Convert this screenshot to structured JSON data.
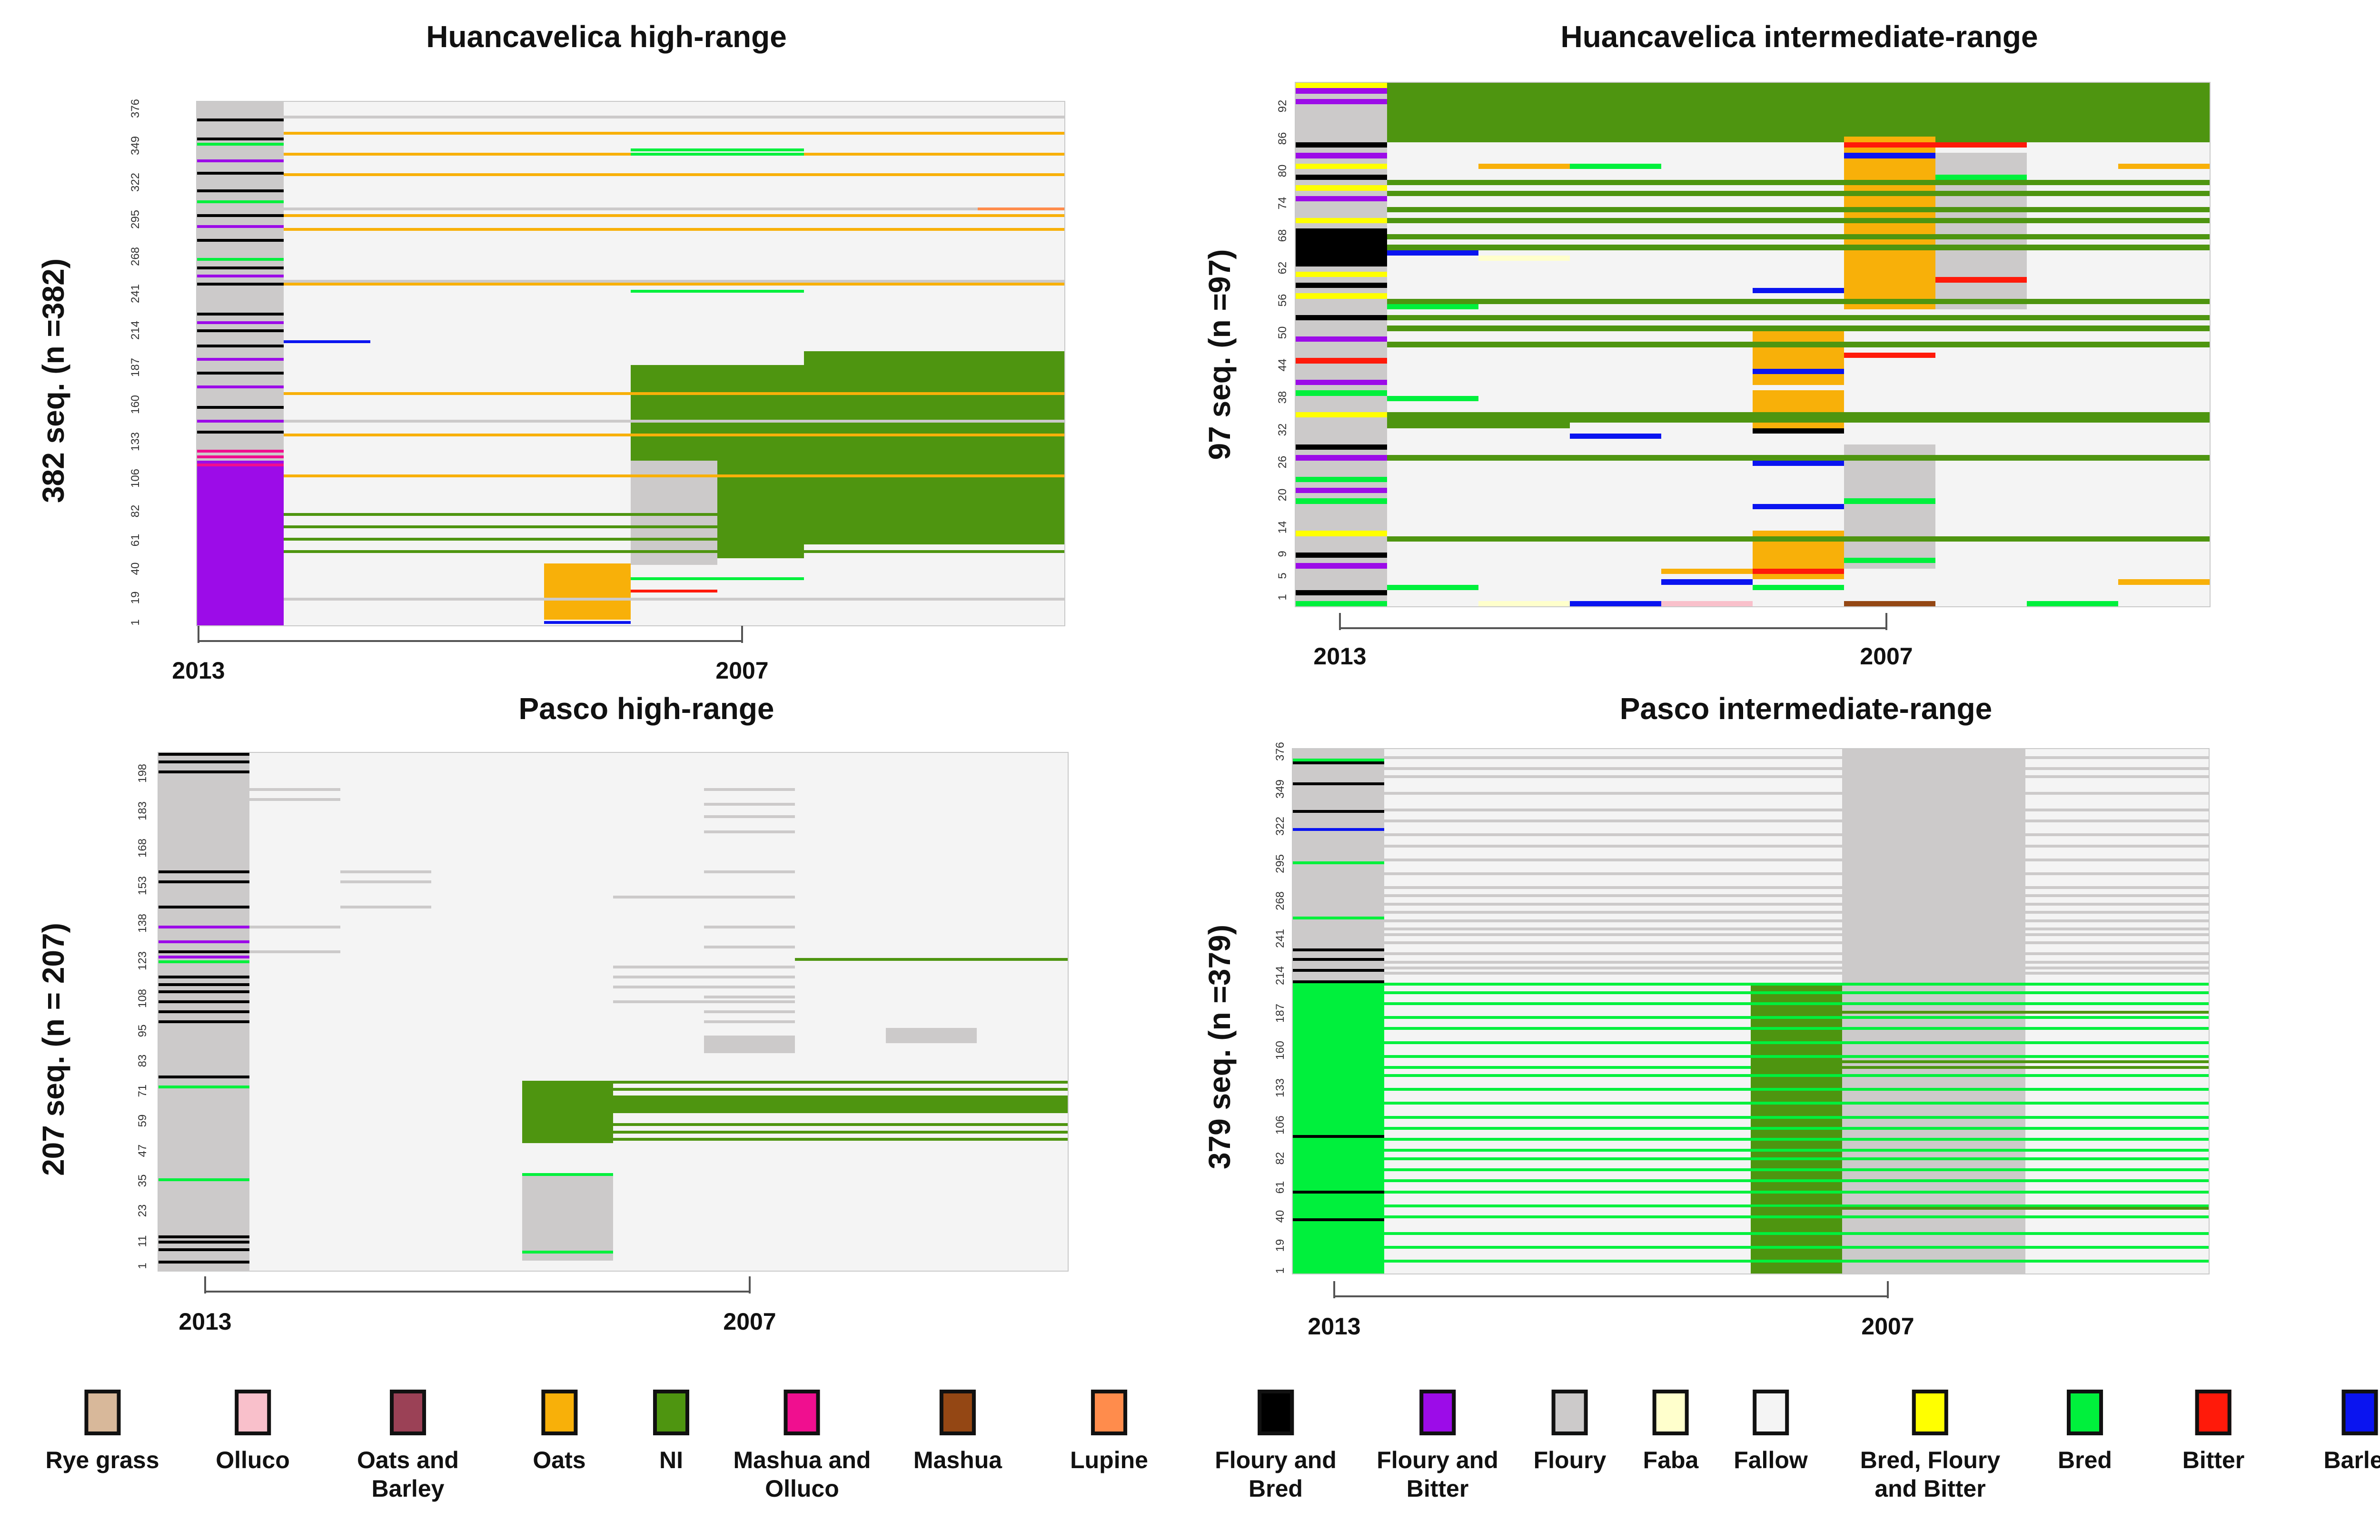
{
  "chart_data": [
    {
      "type": "heatmap",
      "title": "Huancavelica high-range",
      "ylabel": "382 seq. (n =382)",
      "n": 382,
      "y_ticks": [
        "1",
        "19",
        "40",
        "61",
        "82",
        "106",
        "133",
        "160",
        "187",
        "214",
        "241",
        "268",
        "295",
        "322",
        "349",
        "376"
      ],
      "x_labels": [
        "2013",
        "2007"
      ],
      "columns": 10,
      "blocks": [
        {
          "state": "Floury",
          "col0": 0,
          "col1": 1,
          "row0": 1,
          "row1": 382
        },
        {
          "state": "Floury and Bitter",
          "col0": 0,
          "col1": 1,
          "row0": 1,
          "row1": 120
        },
        {
          "state": "NI",
          "col0": 7,
          "col1": 10,
          "row0": 60,
          "row1": 200
        },
        {
          "state": "NI",
          "col0": 5,
          "col1": 7,
          "row0": 50,
          "row1": 190
        },
        {
          "state": "Oats",
          "col0": 4,
          "col1": 5,
          "row0": 5,
          "row1": 45
        },
        {
          "state": "Floury",
          "col0": 5,
          "col1": 6,
          "row0": 45,
          "row1": 120
        }
      ],
      "lines": [
        {
          "state": "Floury and Bred",
          "col0": 0,
          "col1": 1,
          "rows": [
            142,
            160,
            185,
            205,
            216,
            228,
            250,
            262,
            282,
            300,
            318,
            331,
            356,
            370
          ]
        },
        {
          "state": "Mashua and Olluco",
          "col0": 0,
          "col1": 1,
          "rows": [
            118,
            124,
            128
          ]
        },
        {
          "state": "Floury and Bitter",
          "col0": 0,
          "col1": 1,
          "rows": [
            150,
            175,
            195,
            222,
            256,
            292,
            340
          ]
        },
        {
          "state": "Bred",
          "col0": 0,
          "col1": 1,
          "rows": [
            268,
            310,
            352
          ]
        },
        {
          "state": "NI",
          "col0": 1,
          "col1": 10,
          "rows": [
            55,
            64,
            73,
            82
          ]
        },
        {
          "state": "Oats",
          "col0": 1,
          "col1": 10,
          "rows": [
            110,
            140,
            170,
            250,
            290,
            300,
            330,
            345,
            360,
            372
          ]
        },
        {
          "state": "Floury",
          "col0": 1,
          "col1": 10,
          "rows": [
            20,
            150,
            252,
            305,
            372
          ]
        },
        {
          "state": "Barley",
          "col0": 1,
          "col1": 2,
          "rows": [
            208
          ]
        },
        {
          "state": "Barley",
          "col0": 4,
          "col1": 5,
          "rows": [
            3
          ]
        },
        {
          "state": "Bitter",
          "col0": 5,
          "col1": 6,
          "rows": [
            26
          ]
        },
        {
          "state": "Bred",
          "col0": 5,
          "col1": 7,
          "rows": [
            35,
            245,
            345,
            348
          ]
        },
        {
          "state": "Lupine",
          "col0": 9,
          "col1": 10,
          "rows": [
            305
          ]
        }
      ]
    },
    {
      "type": "heatmap",
      "title": "Huancavelica intermediate-range",
      "ylabel": "97 seq. (n =97)",
      "n": 97,
      "y_ticks": [
        "1",
        "5",
        "9",
        "14",
        "20",
        "26",
        "32",
        "38",
        "44",
        "50",
        "56",
        "62",
        "68",
        "74",
        "80",
        "86",
        "92"
      ],
      "x_labels": [
        "2013",
        "2007"
      ],
      "columns": 10,
      "blocks": [
        {
          "state": "NI",
          "col0": 1,
          "col1": 10,
          "rows_from": 87,
          "row0": 87,
          "row1": 97
        },
        {
          "state": "Floury",
          "col0": 0,
          "col1": 1,
          "row0": 1,
          "row1": 97
        },
        {
          "state": "Floury and Bred",
          "col0": 0,
          "col1": 1,
          "row0": 64,
          "row1": 70
        },
        {
          "state": "Oats",
          "col0": 5,
          "col1": 6,
          "row0": 6,
          "row1": 14
        },
        {
          "state": "Oats",
          "col0": 5,
          "col1": 6,
          "row0": 34,
          "row1": 40
        },
        {
          "state": "Oats",
          "col0": 5,
          "col1": 6,
          "row0": 42,
          "row1": 52
        },
        {
          "state": "Oats",
          "col0": 6,
          "col1": 7,
          "row0": 56,
          "row1": 87
        },
        {
          "state": "Floury",
          "col0": 6,
          "col1": 7,
          "row0": 8,
          "row1": 30
        },
        {
          "state": "Floury",
          "col0": 7,
          "col1": 8,
          "row0": 56,
          "row1": 84
        }
      ],
      "lines": [
        {
          "state": "Floury and Bitter",
          "col0": 0,
          "col1": 1,
          "rows": [
            8,
            22,
            28,
            42,
            50,
            76,
            84,
            94,
            96
          ]
        },
        {
          "state": "Bred, Floury and Bitter",
          "col0": 0,
          "col1": 1,
          "rows": [
            14,
            36,
            58,
            62,
            72,
            78,
            82,
            97
          ]
        },
        {
          "state": "Floury and Bred",
          "col0": 0,
          "col1": 1,
          "rows": [
            3,
            10,
            30,
            54,
            60,
            80,
            86
          ]
        },
        {
          "state": "Bitter",
          "col0": 0,
          "col1": 1,
          "rows": [
            46
          ]
        },
        {
          "state": "Bred",
          "col0": 0,
          "col1": 1,
          "rows": [
            1,
            20,
            24,
            40
          ]
        },
        {
          "state": "NI",
          "col0": 1,
          "col1": 10,
          "rows": [
            13,
            28,
            35,
            36,
            49,
            52,
            54,
            57,
            67,
            69,
            72,
            74,
            77,
            79
          ]
        },
        {
          "state": "NI",
          "col0": 1,
          "col1": 3,
          "rows": [
            34
          ]
        },
        {
          "state": "Bred",
          "col0": 1,
          "col1": 2,
          "rows": [
            4,
            56
          ]
        },
        {
          "state": "Bred",
          "col0": 1,
          "col1": 2,
          "rows": [
            39
          ]
        },
        {
          "state": "Barley",
          "col0": 1,
          "col1": 2,
          "rows": [
            66
          ]
        },
        {
          "state": "Barley",
          "col0": 3,
          "col1": 4,
          "rows": [
            1,
            32
          ]
        },
        {
          "state": "Oats",
          "col0": 2,
          "col1": 3,
          "rows": [
            82
          ]
        },
        {
          "state": "Bred",
          "col0": 3,
          "col1": 4,
          "rows": [
            82
          ]
        },
        {
          "state": "Faba",
          "col0": 2,
          "col1": 3,
          "rows": [
            1,
            65
          ]
        },
        {
          "state": "Olluco",
          "col0": 4,
          "col1": 5,
          "rows": [
            1
          ]
        },
        {
          "state": "Barley",
          "col0": 4,
          "col1": 5,
          "rows": [
            5
          ]
        },
        {
          "state": "Oats",
          "col0": 4,
          "col1": 5,
          "rows": [
            7
          ]
        },
        {
          "state": "Barley",
          "col0": 5,
          "col1": 6,
          "rows": [
            19,
            27,
            44,
            59
          ]
        },
        {
          "state": "Bitter",
          "col0": 5,
          "col1": 6,
          "rows": [
            7
          ]
        },
        {
          "state": "Bred",
          "col0": 5,
          "col1": 6,
          "rows": [
            4
          ]
        },
        {
          "state": "Floury and Bred",
          "col0": 5,
          "col1": 6,
          "rows": [
            33
          ]
        },
        {
          "state": "Mashua",
          "col0": 6,
          "col1": 7,
          "rows": [
            1
          ]
        },
        {
          "state": "Bred",
          "col0": 6,
          "col1": 7,
          "rows": [
            9,
            20
          ]
        },
        {
          "state": "Bitter",
          "col0": 6,
          "col1": 7,
          "rows": [
            47,
            86
          ]
        },
        {
          "state": "Barley",
          "col0": 6,
          "col1": 7,
          "rows": [
            84
          ]
        },
        {
          "state": "Bitter",
          "col0": 7,
          "col1": 8,
          "rows": [
            61,
            86
          ]
        },
        {
          "state": "Bred",
          "col0": 7,
          "col1": 8,
          "rows": [
            80
          ]
        },
        {
          "state": "Bred",
          "col0": 8,
          "col1": 9,
          "rows": [
            1
          ]
        },
        {
          "state": "Oats",
          "col0": 9,
          "col1": 10,
          "rows": [
            5,
            82
          ]
        }
      ]
    },
    {
      "type": "heatmap",
      "title": "Pasco high-range",
      "ylabel": "207 seq. (n = 207)",
      "n": 207,
      "y_ticks": [
        "1",
        "11",
        "23",
        "35",
        "47",
        "59",
        "71",
        "83",
        "95",
        "108",
        "123",
        "138",
        "153",
        "168",
        "183",
        "198"
      ],
      "x_labels": [
        "2013",
        "2007"
      ],
      "columns": 10,
      "blocks": [
        {
          "state": "Floury",
          "col0": 0,
          "col1": 1,
          "row0": 1,
          "row1": 207
        },
        {
          "state": "NI",
          "col0": 4,
          "col1": 10,
          "row0": 64,
          "row1": 70
        },
        {
          "state": "NI",
          "col0": 4,
          "col1": 5,
          "row0": 52,
          "row1": 75
        },
        {
          "state": "Floury",
          "col0": 4,
          "col1": 5,
          "row0": 5,
          "row1": 38
        },
        {
          "state": "Floury",
          "col0": 8,
          "col1": 9,
          "row0": 92,
          "row1": 97
        },
        {
          "state": "Floury",
          "col0": 6,
          "col1": 7,
          "row0": 88,
          "row1": 94
        }
      ],
      "lines": [
        {
          "state": "Floury and Bred",
          "col0": 0,
          "col1": 1,
          "rows": [
            4,
            9,
            12,
            14,
            78,
            100,
            104,
            108,
            112,
            115,
            118,
            128,
            146,
            156,
            160,
            200,
            204,
            207
          ]
        },
        {
          "state": "Floury and Bitter",
          "col0": 0,
          "col1": 1,
          "rows": [
            126,
            132,
            138
          ]
        },
        {
          "state": "Bred",
          "col0": 0,
          "col1": 1,
          "rows": [
            37,
            74,
            124
          ]
        },
        {
          "state": "NI",
          "col0": 4,
          "col1": 10,
          "rows": [
            53,
            56,
            59,
            73,
            76
          ]
        },
        {
          "state": "NI",
          "col0": 7,
          "col1": 10,
          "rows": [
            125
          ]
        },
        {
          "state": "Bred",
          "col0": 4,
          "col1": 5,
          "rows": [
            8,
            39
          ]
        },
        {
          "state": "Floury",
          "col0": 1,
          "col1": 2,
          "rows": [
            128,
            138,
            189,
            193
          ]
        },
        {
          "state": "Floury",
          "col0": 2,
          "col1": 3,
          "rows": [
            146,
            156,
            160
          ]
        },
        {
          "state": "Floury",
          "col0": 5,
          "col1": 7,
          "rows": [
            108,
            114,
            118,
            122,
            150
          ]
        },
        {
          "state": "Floury",
          "col0": 6,
          "col1": 7,
          "rows": [
            100,
            104,
            110,
            118,
            122,
            130,
            138,
            160,
            176,
            182,
            187,
            193
          ]
        }
      ]
    },
    {
      "type": "heatmap",
      "title": "Pasco intermediate-range",
      "ylabel": "379 seq. (n =379)",
      "n": 379,
      "y_ticks": [
        "1",
        "19",
        "40",
        "61",
        "82",
        "106",
        "133",
        "160",
        "187",
        "214",
        "241",
        "268",
        "295",
        "322",
        "349",
        "376"
      ],
      "x_labels": [
        "2013",
        "2007"
      ],
      "columns": 10,
      "blocks": [
        {
          "state": "Floury",
          "col0": 0,
          "col1": 1,
          "row0": 1,
          "row1": 379
        },
        {
          "state": "Bred",
          "col0": 0,
          "col1": 1,
          "row0": 1,
          "row1": 210
        },
        {
          "state": "NI",
          "col0": 5,
          "col1": 6,
          "row0": 1,
          "row1": 210
        },
        {
          "state": "Floury",
          "col0": 6,
          "col1": 8,
          "row0": 1,
          "row1": 379
        }
      ],
      "lines": [
        {
          "state": "Bred",
          "col0": 1,
          "col1": 10,
          "rows": [
            10,
            20,
            30,
            42,
            50,
            60,
            68,
            76,
            84,
            90,
            98,
            106,
            114,
            124,
            134,
            144,
            150,
            158,
            168,
            178,
            186,
            196,
            204,
            210
          ]
        },
        {
          "state": "NI",
          "col0": 5,
          "col1": 10,
          "rows": [
            48,
            150,
            154,
            190
          ]
        },
        {
          "state": "Floury and Bred",
          "col0": 0,
          "col1": 1,
          "rows": [
            40,
            60,
            100,
            212,
            220,
            228,
            235,
            335,
            355,
            370
          ]
        },
        {
          "state": "Bred",
          "col0": 0,
          "col1": 1,
          "rows": [
            258,
            298,
            372
          ]
        },
        {
          "state": "Barley",
          "col0": 0,
          "col1": 1,
          "rows": [
            322
          ]
        },
        {
          "state": "Floury",
          "col0": 1,
          "col1": 10,
          "rows": [
            218,
            222,
            226,
            232,
            240,
            246,
            250,
            256,
            262,
            268,
            274,
            280,
            290,
            300,
            310,
            318,
            328,
            336,
            348,
            360,
            366,
            374
          ]
        }
      ]
    }
  ],
  "legend": [
    {
      "label": "Rye grass",
      "color": "#d8b89a"
    },
    {
      "label": "Olluco",
      "color": "#f9c0cb"
    },
    {
      "label": "Oats and Barley",
      "color": "#9b4156"
    },
    {
      "label": "Oats",
      "color": "#f8b009"
    },
    {
      "label": "NI",
      "color": "#4e9510"
    },
    {
      "label": "Mashua and Olluco",
      "color": "#f00f8f"
    },
    {
      "label": "Mashua",
      "color": "#944714"
    },
    {
      "label": "Lupine",
      "color": "#ff8c4c"
    },
    {
      "label": "Floury and Bred",
      "color": "#000000"
    },
    {
      "label": "Floury and Bitter",
      "color": "#9c0ce8"
    },
    {
      "label": "Floury",
      "color": "#cccaca"
    },
    {
      "label": "Faba",
      "color": "#ffffcc"
    },
    {
      "label": "Fallow",
      "color": "#f4f4f4"
    },
    {
      "label": "Bred, Floury and Bitter",
      "color": "#ffff00"
    },
    {
      "label": "Bred",
      "color": "#00f03c"
    },
    {
      "label": "Bitter",
      "color": "#ff1a0a"
    },
    {
      "label": "Barley",
      "color": "#0a14f0"
    }
  ]
}
